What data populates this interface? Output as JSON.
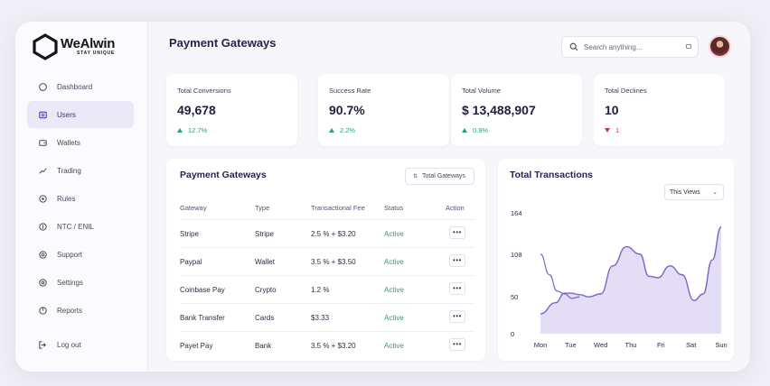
{
  "app": {
    "brand_name": "WeAlwin",
    "brand_tagline": "STAY UNIQUE",
    "page_title": "Payment Gateways"
  },
  "search": {
    "placeholder": "Search anything..."
  },
  "sidebar": {
    "items": [
      {
        "label": "Dashboard",
        "icon": "dashboard-icon",
        "active": false
      },
      {
        "label": "Users",
        "icon": "users-icon",
        "active": true
      },
      {
        "label": "Wallets",
        "icon": "wallet-icon",
        "active": false
      },
      {
        "label": "Trading",
        "icon": "trading-icon",
        "active": false
      },
      {
        "label": "Rules",
        "icon": "rules-icon",
        "active": false
      },
      {
        "label": "NTC / ENIL",
        "icon": "network-icon",
        "active": false
      },
      {
        "label": "Support",
        "icon": "support-icon",
        "active": false
      },
      {
        "label": "Settings",
        "icon": "settings-icon",
        "active": false
      },
      {
        "label": "Reports",
        "icon": "reports-icon",
        "active": false
      }
    ],
    "logout_label": "Log out"
  },
  "stats": [
    {
      "label": "Total Conversions",
      "value": "49,678",
      "delta": "12.7%",
      "direction": "up"
    },
    {
      "label": "Success Rate",
      "value": "90.7%",
      "delta": "2.2%",
      "direction": "up"
    },
    {
      "label": "Total Volume",
      "value": "$ 13,488,907",
      "delta": "0.9%",
      "direction": "up"
    },
    {
      "label": "Total Declines",
      "value": "10",
      "delta": "1",
      "direction": "down"
    }
  ],
  "gateways_table": {
    "title": "Payment Gateways",
    "filter_label": "Total Gateways",
    "columns": [
      "Gateway",
      "Type",
      "Transactional Fee",
      "Status",
      "Action"
    ],
    "rows": [
      {
        "gateway": "Stripe",
        "type": "Stripe",
        "fee": "2.5 % + $3.20",
        "status": "Active"
      },
      {
        "gateway": "Paypal",
        "type": "Wallet",
        "fee": "3.5 % + $3.50",
        "status": "Active"
      },
      {
        "gateway": "Coinbase Pay",
        "type": "Crypto",
        "fee": "1.2 %",
        "status": "Active"
      },
      {
        "gateway": "Bank Transfer",
        "type": "Cards",
        "fee": "$3.33",
        "status": "Active"
      },
      {
        "gateway": "Payet Pay",
        "type": "Bank",
        "fee": "3.5 % + $3.20",
        "status": "Active"
      }
    ],
    "action_icon": "more-dots-icon"
  },
  "chart_data": {
    "type": "area",
    "title": "Total Transactions",
    "range_label": "This Views",
    "categories": [
      "Mon",
      "Tue",
      "Wed",
      "Thu",
      "Fri",
      "Sat",
      "Sun"
    ],
    "y_ticks": [
      "0",
      "50",
      "108",
      "164"
    ],
    "ylim": [
      0,
      164
    ],
    "series_primary": {
      "x": [
        0,
        0.5,
        0.8,
        1.0,
        1.3,
        1.6,
        2.0,
        2.4,
        2.85,
        3.3,
        3.6,
        3.9,
        4.3,
        4.7,
        5.1,
        5.4,
        5.7,
        6.0
      ],
      "y": [
        27,
        42,
        55,
        55,
        53,
        50,
        54,
        92,
        118,
        108,
        78,
        76,
        92,
        80,
        45,
        54,
        100,
        145
      ]
    },
    "series_secondary": {
      "x": [
        0,
        0.3,
        0.55,
        0.8,
        1.05,
        1.3
      ],
      "y": [
        108,
        80,
        58,
        54,
        48,
        50
      ]
    },
    "fill_color": "#e4ddf6",
    "line_color": "#7e64c4",
    "grid": false
  },
  "colors": {
    "accent": "#3b2f86",
    "positive": "#2aa36a",
    "negative": "#c2344f"
  }
}
